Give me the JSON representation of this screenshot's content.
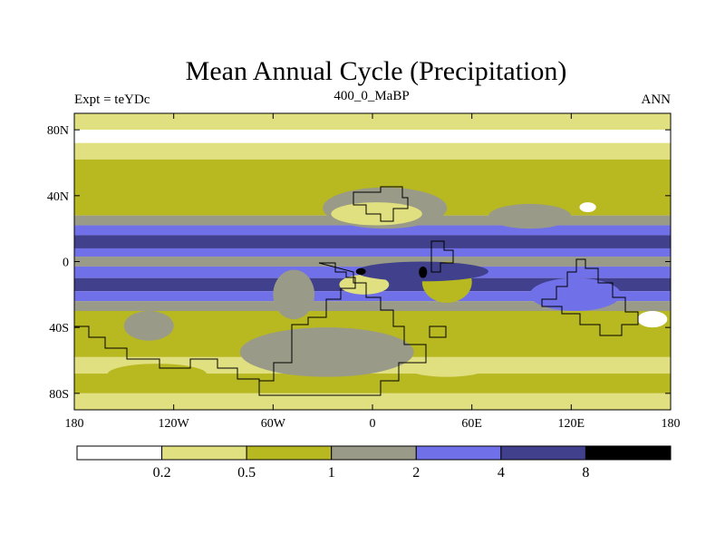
{
  "chart_data": {
    "type": "heatmap",
    "title": "Mean Annual Cycle (Precipitation)",
    "subtitle": "400_0_MaBP",
    "left_label": "Expt = teYDc",
    "right_label": "ANN",
    "xlabel": "",
    "ylabel": "",
    "xlim": [
      -180,
      180
    ],
    "ylim": [
      -90,
      90
    ],
    "x_ticks": [
      {
        "value": -180,
        "label": "180"
      },
      {
        "value": -120,
        "label": "120W"
      },
      {
        "value": -60,
        "label": "60W"
      },
      {
        "value": 0,
        "label": "0"
      },
      {
        "value": 60,
        "label": "60E"
      },
      {
        "value": 120,
        "label": "120E"
      },
      {
        "value": 180,
        "label": "180"
      }
    ],
    "y_ticks": [
      {
        "value": 80,
        "label": "80N"
      },
      {
        "value": 40,
        "label": "40N"
      },
      {
        "value": 0,
        "label": "0"
      },
      {
        "value": -40,
        "label": "40S"
      },
      {
        "value": -80,
        "label": "80S"
      }
    ],
    "levels": [
      "0.2",
      "0.5",
      "1",
      "2",
      "4",
      "8"
    ],
    "colors": [
      "#ffffff",
      "#e0e080",
      "#b8b820",
      "#9a9a88",
      "#7070e8",
      "#40408c",
      "#000000"
    ],
    "band_layout": [
      {
        "lat": [
          80,
          90
        ],
        "class": 1
      },
      {
        "lat": [
          72,
          80
        ],
        "class": 0
      },
      {
        "lat": [
          62,
          72
        ],
        "class": 1
      },
      {
        "lat": [
          28,
          62
        ],
        "class": 2
      },
      {
        "lat": [
          22,
          28
        ],
        "class": 3
      },
      {
        "lat": [
          16,
          22
        ],
        "class": 4
      },
      {
        "lat": [
          8,
          16
        ],
        "class": 5
      },
      {
        "lat": [
          3,
          8
        ],
        "class": 4
      },
      {
        "lat": [
          -3,
          3
        ],
        "class": 3
      },
      {
        "lat": [
          -10,
          -3
        ],
        "class": 4
      },
      {
        "lat": [
          -18,
          -10
        ],
        "class": 5
      },
      {
        "lat": [
          -24,
          -18
        ],
        "class": 4
      },
      {
        "lat": [
          -30,
          -24
        ],
        "class": 3
      },
      {
        "lat": [
          -58,
          -30
        ],
        "class": 2
      },
      {
        "lat": [
          -68,
          -58
        ],
        "class": 1
      },
      {
        "lat": [
          -80,
          -68
        ],
        "class": 2
      },
      {
        "lat": [
          -90,
          -80
        ],
        "class": 1
      }
    ],
    "regional_features": [
      {
        "lon": [
          -60,
          -35
        ],
        "lat": [
          -35,
          -5
        ],
        "class": 3
      },
      {
        "lon": [
          -80,
          25
        ],
        "lat": [
          -70,
          -40
        ],
        "class": 3
      },
      {
        "lon": [
          -150,
          -120
        ],
        "lat": [
          -48,
          -30
        ],
        "class": 3
      },
      {
        "lon": [
          -30,
          45
        ],
        "lat": [
          20,
          45
        ],
        "class": 3
      },
      {
        "lon": [
          -25,
          30
        ],
        "lat": [
          22,
          36
        ],
        "class": 1
      },
      {
        "lon": [
          30,
          60
        ],
        "lat": [
          -25,
          0
        ],
        "class": 2
      },
      {
        "lon": [
          -20,
          10
        ],
        "lat": [
          -20,
          -8
        ],
        "class": 1
      },
      {
        "lon": [
          -10,
          70
        ],
        "lat": [
          -12,
          0
        ],
        "class": 5
      },
      {
        "lon": [
          -10,
          -4
        ],
        "lat": [
          -8,
          -4
        ],
        "class": 6
      },
      {
        "lon": [
          28,
          33
        ],
        "lat": [
          -10,
          -3
        ],
        "class": 6
      },
      {
        "lon": [
          95,
          150
        ],
        "lat": [
          -30,
          -10
        ],
        "class": 4
      },
      {
        "lon": [
          70,
          120
        ],
        "lat": [
          20,
          35
        ],
        "class": 3
      },
      {
        "lon": [
          125,
          135
        ],
        "lat": [
          30,
          36
        ],
        "class": 0
      },
      {
        "lon": [
          160,
          178
        ],
        "lat": [
          -40,
          -30
        ],
        "class": 0
      },
      {
        "lon": [
          -160,
          -100
        ],
        "lat": [
          -75,
          -62
        ],
        "class": 2
      },
      {
        "lon": [
          20,
          70
        ],
        "lat": [
          -70,
          -58
        ],
        "class": 1
      }
    ]
  }
}
